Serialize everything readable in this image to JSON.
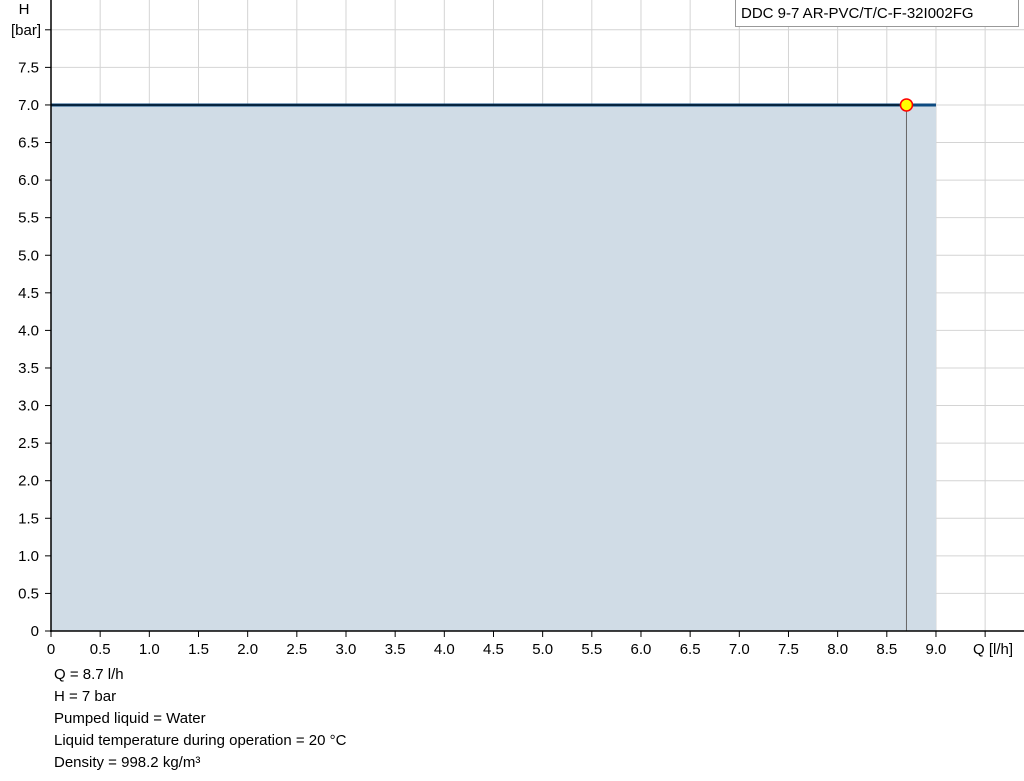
{
  "chart_data": {
    "type": "area",
    "title": "",
    "xlabel": "Q [l/h]",
    "ylabel_line1": "H",
    "ylabel_line2": "[bar]",
    "xlim": [
      0,
      9.9
    ],
    "ylim": [
      0,
      8.0
    ],
    "x_ticks": [
      "0",
      "0.5",
      "1.0",
      "1.5",
      "2.0",
      "2.5",
      "3.0",
      "3.5",
      "4.0",
      "4.5",
      "5.0",
      "5.5",
      "6.0",
      "6.5",
      "7.0",
      "7.5",
      "8.0",
      "8.5",
      "9.0"
    ],
    "y_ticks": [
      "0",
      "0.5",
      "1.0",
      "1.5",
      "2.0",
      "2.5",
      "3.0",
      "3.5",
      "4.0",
      "4.5",
      "5.0",
      "5.5",
      "6.0",
      "6.5",
      "7.0",
      "7.5"
    ],
    "grid": true,
    "legend_position": "top-right",
    "series": [
      {
        "name": "DDC 9-7 AR-PVC/T/C-F-32I002FG",
        "x": [
          0,
          9.0
        ],
        "y": [
          7.0,
          7.0
        ],
        "color": "#0d4a80",
        "fill": "#d0dce6"
      }
    ],
    "operating_point": {
      "x": 8.7,
      "y": 7.0,
      "fill": "#ffff00",
      "stroke": "#ff0000"
    }
  },
  "info": {
    "q": "Q = 8.7 l/h",
    "h": "H = 7 bar",
    "liquid": "Pumped liquid = Water",
    "temperature": "Liquid temperature during operation = 20 °C",
    "density": "Density = 998.2 kg/m³"
  }
}
